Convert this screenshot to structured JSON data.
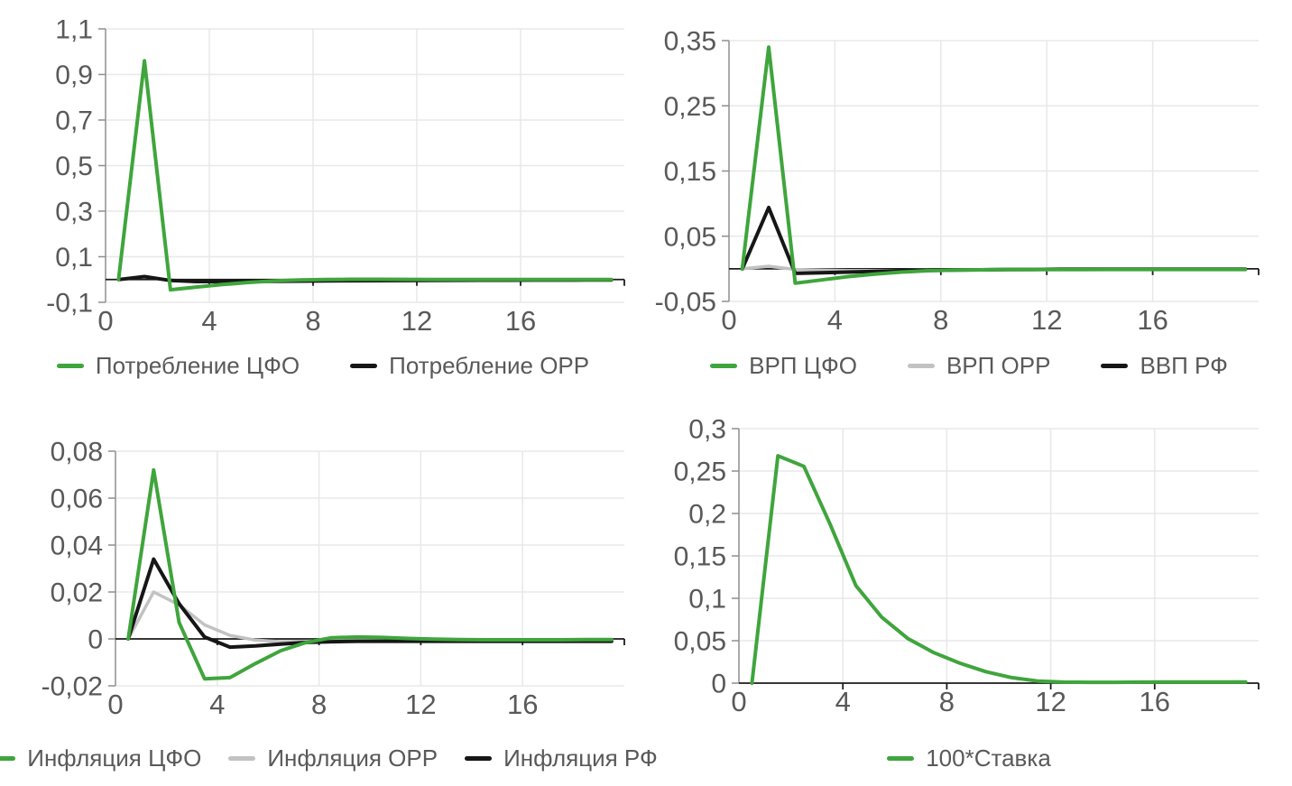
{
  "palette": {
    "green": "#3fa53c",
    "gray": "#c2c2c2",
    "black": "#161616",
    "grid": "#e8e8e8",
    "spine": "#8f8f8f",
    "zero_axis": "#1c1c1c",
    "tick_text": "#595959"
  },
  "chart_data": [
    {
      "type": "line",
      "position": "top-left",
      "title": "",
      "xlabel": "",
      "ylabel": "",
      "xlim": [
        0,
        20
      ],
      "ylim": [
        -0.1,
        1.1
      ],
      "grid": true,
      "legend_position": "bottom",
      "x": [
        0.5,
        1.5,
        2.5,
        3.5,
        4.5,
        5.5,
        6.5,
        7.5,
        8.5,
        9.5,
        10.5,
        11.5,
        12.5,
        13.5,
        14.5,
        15.5,
        16.5,
        17.5,
        18.5,
        19.5
      ],
      "x_ticks": {
        "values": [
          0,
          4,
          8,
          12,
          16
        ],
        "labels": [
          "0",
          "4",
          "8",
          "12",
          "16"
        ]
      },
      "y_ticks": {
        "values": [
          -0.1,
          0.1,
          0.3,
          0.5,
          0.7,
          0.9,
          1.1
        ],
        "labels": [
          "-0,1",
          "0,1",
          "0,3",
          "0,5",
          "0,7",
          "0,9",
          "1,1"
        ]
      },
      "series": [
        {
          "name": "Потребление ЦФО",
          "color": "green",
          "values": [
            0,
            0.96,
            -0.045,
            -0.033,
            -0.022,
            -0.013,
            -0.006,
            -0.002,
            0,
            0.001,
            0.001,
            0.0005,
            0,
            0,
            0,
            0,
            0,
            0,
            0,
            0
          ]
        },
        {
          "name": "Потребление ОРР",
          "color": "black",
          "values": [
            0,
            0.013,
            -0.004,
            -0.009,
            -0.009,
            -0.0085,
            -0.008,
            -0.007,
            -0.006,
            -0.0055,
            -0.005,
            -0.0045,
            -0.004,
            -0.0035,
            -0.003,
            -0.003,
            -0.0025,
            -0.0025,
            -0.002,
            -0.002
          ]
        }
      ]
    },
    {
      "type": "line",
      "position": "top-right",
      "title": "",
      "xlabel": "",
      "ylabel": "",
      "xlim": [
        0,
        20
      ],
      "ylim": [
        -0.05,
        0.35
      ],
      "grid": true,
      "legend_position": "bottom",
      "x": [
        0.5,
        1.5,
        2.5,
        3.5,
        4.5,
        5.5,
        6.5,
        7.5,
        8.5,
        9.5,
        10.5,
        11.5,
        12.5,
        13.5,
        14.5,
        15.5,
        16.5,
        17.5,
        18.5,
        19.5
      ],
      "x_ticks": {
        "values": [
          0,
          4,
          8,
          12,
          16
        ],
        "labels": [
          "0",
          "4",
          "8",
          "12",
          "16"
        ]
      },
      "y_ticks": {
        "values": [
          -0.05,
          0.05,
          0.15,
          0.25,
          0.35
        ],
        "labels": [
          "-0,05",
          "0,05",
          "0,15",
          "0,25",
          "0,35"
        ]
      },
      "series": [
        {
          "name": "ВРП ЦФО",
          "color": "green",
          "values": [
            0,
            0.34,
            -0.022,
            -0.017,
            -0.012,
            -0.008,
            -0.005,
            -0.003,
            -0.002,
            -0.0015,
            -0.001,
            -0.001,
            -0.001,
            -0.001,
            -0.001,
            -0.001,
            -0.001,
            -0.001,
            -0.001,
            -0.001
          ]
        },
        {
          "name": "ВРП ОРР",
          "color": "gray",
          "values": [
            0,
            0.004,
            -0.001,
            -0.002,
            -0.0025,
            -0.0025,
            -0.0025,
            -0.002,
            -0.002,
            -0.002,
            -0.002,
            -0.0015,
            -0.0015,
            -0.0015,
            -0.001,
            -0.001,
            -0.001,
            -0.001,
            -0.001,
            -0.001
          ]
        },
        {
          "name": "ВВП РФ",
          "color": "black",
          "values": [
            0,
            0.094,
            -0.007,
            -0.006,
            -0.005,
            -0.004,
            -0.003,
            -0.0025,
            -0.002,
            -0.0015,
            -0.001,
            -0.001,
            -0.0005,
            -0.0005,
            -0.0005,
            -0.0005,
            -0.0005,
            -0.0005,
            -0.0005,
            -0.0005
          ]
        }
      ]
    },
    {
      "type": "line",
      "position": "bottom-left",
      "title": "",
      "xlabel": "",
      "ylabel": "",
      "xlim": [
        0,
        20
      ],
      "ylim": [
        -0.02,
        0.08
      ],
      "grid": true,
      "legend_position": "bottom",
      "x": [
        0.5,
        1.5,
        2.5,
        3.5,
        4.5,
        5.5,
        6.5,
        7.5,
        8.5,
        9.5,
        10.5,
        11.5,
        12.5,
        13.5,
        14.5,
        15.5,
        16.5,
        17.5,
        18.5,
        19.5
      ],
      "x_ticks": {
        "values": [
          0,
          4,
          8,
          12,
          16
        ],
        "labels": [
          "0",
          "4",
          "8",
          "12",
          "16"
        ]
      },
      "y_ticks": {
        "values": [
          -0.02,
          0,
          0.02,
          0.04,
          0.06,
          0.08
        ],
        "labels": [
          "-0,02",
          "0",
          "0,02",
          "0,04",
          "0,06",
          "0,08"
        ]
      },
      "series": [
        {
          "name": "Инфляция ЦФО",
          "color": "green",
          "values": [
            0,
            0.072,
            0.007,
            -0.017,
            -0.0165,
            -0.0105,
            -0.005,
            -0.0015,
            0.0005,
            0.0008,
            0.0006,
            0.0002,
            -0.0001,
            -0.0003,
            -0.0004,
            -0.0004,
            -0.0004,
            -0.0004,
            -0.0003,
            -0.0003
          ]
        },
        {
          "name": "Инфляция ОРР",
          "color": "gray",
          "values": [
            0,
            0.02,
            0.0145,
            0.006,
            0.0015,
            -0.0005,
            -0.0012,
            -0.001,
            -0.0007,
            -0.0005,
            -0.0004,
            -0.0003,
            -0.0003,
            -0.0003,
            -0.0003,
            -0.0003,
            -0.0003,
            -0.0003,
            -0.0003,
            -0.0003
          ]
        },
        {
          "name": "Инфляция РФ",
          "color": "black",
          "values": [
            0,
            0.034,
            0.015,
            0.0008,
            -0.0035,
            -0.003,
            -0.0022,
            -0.0015,
            -0.0012,
            -0.001,
            -0.001,
            -0.001,
            -0.001,
            -0.001,
            -0.001,
            -0.001,
            -0.001,
            -0.001,
            -0.001,
            -0.001
          ]
        }
      ]
    },
    {
      "type": "line",
      "position": "bottom-right",
      "title": "",
      "xlabel": "",
      "ylabel": "",
      "xlim": [
        0,
        20
      ],
      "ylim": [
        0,
        0.3
      ],
      "grid": true,
      "legend_position": "bottom",
      "x": [
        0.5,
        1.5,
        2.5,
        3.5,
        4.5,
        5.5,
        6.5,
        7.5,
        8.5,
        9.5,
        10.5,
        11.5,
        12.5,
        13.5,
        14.5,
        15.5,
        16.5,
        17.5,
        18.5,
        19.5
      ],
      "x_ticks": {
        "values": [
          0,
          4,
          8,
          12,
          16
        ],
        "labels": [
          "0",
          "4",
          "8",
          "12",
          "16"
        ]
      },
      "y_ticks": {
        "values": [
          0,
          0.05,
          0.1,
          0.15,
          0.2,
          0.25,
          0.3
        ],
        "labels": [
          "0",
          "0,05",
          "0,1",
          "0,15",
          "0,2",
          "0,25",
          "0,3"
        ]
      },
      "series": [
        {
          "name": "100*Ставка",
          "color": "green",
          "values": [
            0,
            0.268,
            0.2555,
            0.188,
            0.115,
            0.0775,
            0.0525,
            0.036,
            0.0235,
            0.0135,
            0.0065,
            0.0025,
            0.0012,
            0.001,
            0.001,
            0.0012,
            0.0013,
            0.0013,
            0.0013,
            0.0013
          ]
        }
      ]
    }
  ]
}
